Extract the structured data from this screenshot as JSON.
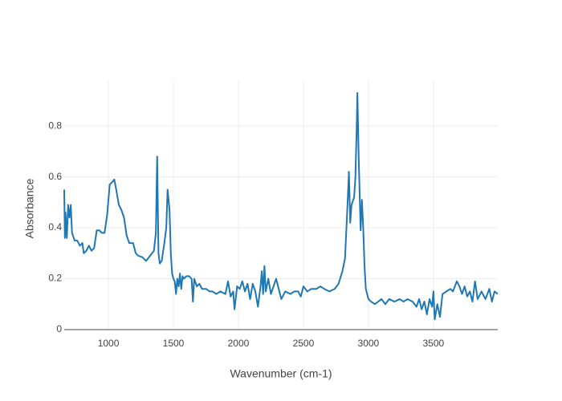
{
  "chart_data": {
    "type": "line",
    "x_label": "Wavenumber (cm-1)",
    "y_label": "Absorbance",
    "xlim": [
      660,
      3995
    ],
    "ylim": [
      0,
      0.98
    ],
    "xticks": [
      1000,
      1500,
      2000,
      2500,
      3000,
      3500
    ],
    "yticks": [
      0,
      0.2,
      0.4,
      0.6,
      0.8
    ],
    "grid": true,
    "x": [
      660,
      665,
      670,
      680,
      690,
      700,
      710,
      720,
      740,
      760,
      780,
      800,
      810,
      830,
      850,
      870,
      890,
      910,
      930,
      950,
      970,
      990,
      1010,
      1030,
      1045,
      1060,
      1080,
      1100,
      1120,
      1140,
      1160,
      1190,
      1210,
      1230,
      1260,
      1290,
      1320,
      1350,
      1365,
      1375,
      1385,
      1395,
      1410,
      1430,
      1445,
      1455,
      1470,
      1480,
      1490,
      1500,
      1510,
      1520,
      1530,
      1540,
      1550,
      1560,
      1570,
      1580,
      1600,
      1620,
      1640,
      1650,
      1660,
      1680,
      1700,
      1720,
      1750,
      1780,
      1800,
      1830,
      1860,
      1900,
      1920,
      1940,
      1960,
      1970,
      1990,
      2010,
      2030,
      2050,
      2070,
      2090,
      2110,
      2130,
      2150,
      2170,
      2180,
      2190,
      2200,
      2210,
      2230,
      2250,
      2270,
      2290,
      2310,
      2330,
      2360,
      2400,
      2430,
      2460,
      2480,
      2500,
      2530,
      2560,
      2600,
      2630,
      2660,
      2700,
      2740,
      2770,
      2800,
      2820,
      2840,
      2850,
      2860,
      2870,
      2890,
      2900,
      2910,
      2915,
      2925,
      2940,
      2950,
      2960,
      2970,
      2980,
      3000,
      3020,
      3050,
      3100,
      3130,
      3160,
      3200,
      3240,
      3270,
      3300,
      3340,
      3370,
      3390,
      3410,
      3430,
      3450,
      3470,
      3490,
      3500,
      3510,
      3530,
      3550,
      3570,
      3600,
      3630,
      3650,
      3680,
      3700,
      3720,
      3740,
      3760,
      3780,
      3800,
      3820,
      3840,
      3870,
      3900,
      3930,
      3950,
      3970,
      3995
    ],
    "series": [
      {
        "color": "#1f77b4",
        "values": [
          0.55,
          0.36,
          0.46,
          0.36,
          0.49,
          0.44,
          0.49,
          0.38,
          0.35,
          0.35,
          0.33,
          0.34,
          0.3,
          0.31,
          0.33,
          0.31,
          0.32,
          0.39,
          0.39,
          0.38,
          0.38,
          0.45,
          0.57,
          0.58,
          0.59,
          0.55,
          0.49,
          0.47,
          0.44,
          0.37,
          0.34,
          0.34,
          0.3,
          0.29,
          0.285,
          0.27,
          0.29,
          0.31,
          0.38,
          0.68,
          0.3,
          0.26,
          0.27,
          0.34,
          0.4,
          0.55,
          0.47,
          0.3,
          0.22,
          0.2,
          0.19,
          0.14,
          0.2,
          0.17,
          0.22,
          0.16,
          0.21,
          0.2,
          0.21,
          0.21,
          0.2,
          0.11,
          0.2,
          0.17,
          0.18,
          0.16,
          0.16,
          0.15,
          0.15,
          0.14,
          0.15,
          0.14,
          0.19,
          0.13,
          0.15,
          0.08,
          0.17,
          0.16,
          0.19,
          0.15,
          0.18,
          0.12,
          0.18,
          0.15,
          0.09,
          0.17,
          0.23,
          0.14,
          0.25,
          0.15,
          0.2,
          0.14,
          0.17,
          0.2,
          0.16,
          0.12,
          0.15,
          0.14,
          0.15,
          0.15,
          0.13,
          0.17,
          0.15,
          0.16,
          0.16,
          0.17,
          0.16,
          0.15,
          0.16,
          0.18,
          0.23,
          0.28,
          0.5,
          0.62,
          0.42,
          0.49,
          0.52,
          0.6,
          0.8,
          0.93,
          0.68,
          0.39,
          0.51,
          0.4,
          0.25,
          0.16,
          0.12,
          0.11,
          0.1,
          0.12,
          0.1,
          0.12,
          0.11,
          0.12,
          0.11,
          0.12,
          0.11,
          0.09,
          0.12,
          0.08,
          0.11,
          0.06,
          0.12,
          0.09,
          0.15,
          0.04,
          0.1,
          0.05,
          0.14,
          0.15,
          0.16,
          0.15,
          0.19,
          0.17,
          0.14,
          0.17,
          0.13,
          0.15,
          0.11,
          0.19,
          0.12,
          0.15,
          0.12,
          0.16,
          0.11,
          0.15,
          0.14
        ]
      }
    ]
  }
}
